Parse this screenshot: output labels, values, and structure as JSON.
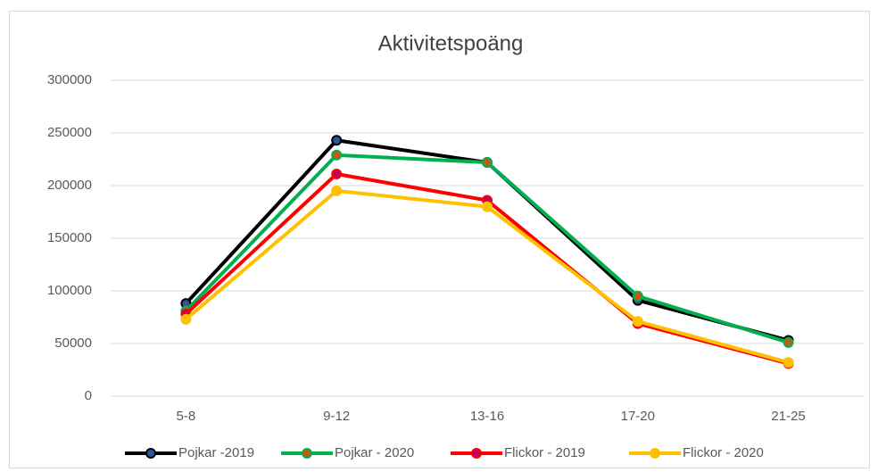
{
  "chart_data": {
    "type": "line",
    "title": "Aktivitetspoäng",
    "categories": [
      "5-8",
      "9-12",
      "13-16",
      "17-20",
      "21-25"
    ],
    "series": [
      {
        "name": "Pojkar -2019",
        "color": "#000000",
        "marker_color": "#2f5597",
        "values": [
          88000,
          243000,
          222000,
          91000,
          53000
        ]
      },
      {
        "name": "Pojkar - 2020",
        "color": "#00b050",
        "marker_color": "#c55a11",
        "values": [
          81000,
          229000,
          222000,
          95000,
          51000
        ]
      },
      {
        "name": "Flickor - 2019",
        "color": "#ff0000",
        "marker_color": "#c00060",
        "values": [
          78000,
          211000,
          186000,
          69000,
          31000
        ]
      },
      {
        "name": "Flickor - 2020",
        "color": "#ffc000",
        "marker_color": "#ffc000",
        "values": [
          73000,
          195000,
          180000,
          71000,
          32000
        ]
      }
    ],
    "ylim": [
      0,
      300000
    ],
    "yticks": [
      0,
      50000,
      100000,
      150000,
      200000,
      250000,
      300000
    ],
    "grid": true,
    "legend": "bottom"
  }
}
